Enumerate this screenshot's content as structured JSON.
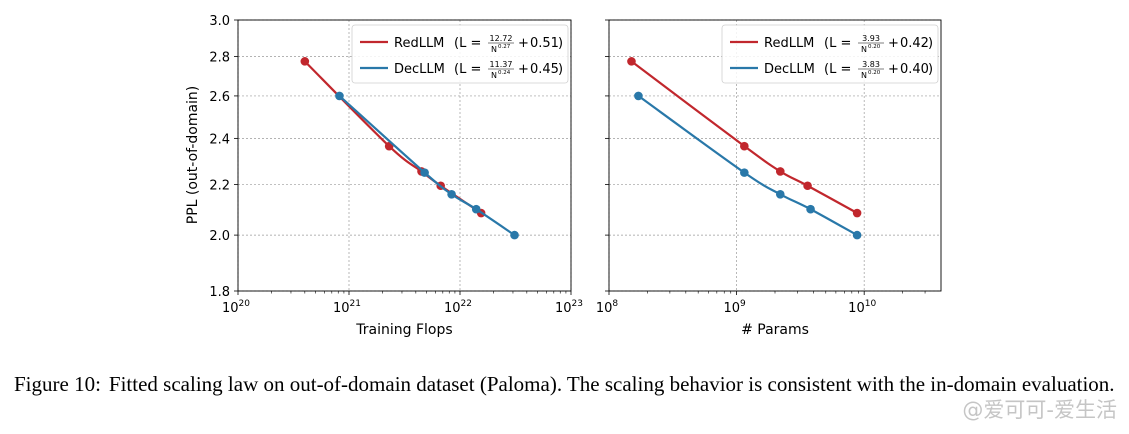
{
  "figure": {
    "y_axis_label": "PPL (out-of-domain)",
    "y_ticks": [
      "1.8",
      "2.0",
      "2.2",
      "2.4",
      "2.6",
      "2.8",
      "3.0"
    ]
  },
  "chart_data": [
    {
      "type": "line",
      "title": "",
      "xlabel": "Training Flops",
      "ylabel": "PPL (out-of-domain)",
      "xscale": "log",
      "yscale": "log",
      "xlim": [
        1e+20,
        1e+23
      ],
      "ylim": [
        1.8,
        3.0
      ],
      "x_ticks": [
        {
          "base": "10",
          "exp": "20"
        },
        {
          "base": "10",
          "exp": "21"
        },
        {
          "base": "10",
          "exp": "22"
        },
        {
          "base": "10",
          "exp": "23"
        }
      ],
      "grid": true,
      "legend_position": "top-right",
      "series": [
        {
          "name": "RedLLM",
          "color": "#c1272d",
          "formula": {
            "coef": "12.72",
            "exp": "0.27",
            "const": "0.51"
          },
          "x": [
            4e+20,
            2.3e+21,
            4.5e+21,
            6.7e+21,
            1.55e+22
          ],
          "y": [
            2.775,
            2.365,
            2.255,
            2.195,
            2.085
          ]
        },
        {
          "name": "DecLLM",
          "color": "#2978a9",
          "formula": {
            "coef": "11.37",
            "exp": "0.24",
            "const": "0.45"
          },
          "x": [
            8.2e+20,
            4.8e+21,
            8.4e+21,
            1.4e+22,
            3.1e+22
          ],
          "y": [
            2.6,
            2.25,
            2.16,
            2.1,
            2.0
          ]
        }
      ]
    },
    {
      "type": "line",
      "title": "",
      "xlabel": "# Params",
      "ylabel": "",
      "xscale": "log",
      "yscale": "log",
      "xlim": [
        100000000.0,
        40000000000.0
      ],
      "ylim": [
        1.8,
        3.0
      ],
      "x_ticks": [
        {
          "base": "10",
          "exp": "8"
        },
        {
          "base": "10",
          "exp": "9"
        },
        {
          "base": "10",
          "exp": "10"
        }
      ],
      "grid": true,
      "legend_position": "top-right",
      "series": [
        {
          "name": "RedLLM",
          "color": "#c1272d",
          "formula": {
            "coef": "3.93",
            "exp": "0.20",
            "const": "0.42"
          },
          "x": [
            150000000.0,
            1150000000.0,
            2200000000.0,
            3600000000.0,
            8800000000.0
          ],
          "y": [
            2.775,
            2.365,
            2.255,
            2.195,
            2.085
          ]
        },
        {
          "name": "DecLLM",
          "color": "#2978a9",
          "formula": {
            "coef": "3.83",
            "exp": "0.20",
            "const": "0.40"
          },
          "x": [
            170000000.0,
            1150000000.0,
            2200000000.0,
            3800000000.0,
            8800000000.0
          ],
          "y": [
            2.6,
            2.25,
            2.16,
            2.1,
            2.0
          ]
        }
      ]
    }
  ],
  "caption": {
    "label": "Figure 10:",
    "text": "Fitted scaling law on out-of-domain dataset (Paloma). The scaling behavior is consistent with the in-domain evaluation."
  },
  "watermark": "@爱可可-爱生活"
}
